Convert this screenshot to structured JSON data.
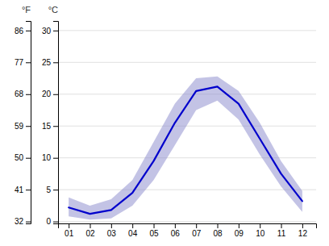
{
  "chart_data": {
    "type": "line",
    "ylabel": "°C",
    "y2label": "°F",
    "x": [
      1,
      2,
      3,
      4,
      5,
      6,
      7,
      8,
      9,
      10,
      11,
      12
    ],
    "xlim": [
      0.5,
      12.65
    ],
    "xticks": [
      {
        "value": 1,
        "label": "01"
      },
      {
        "value": 2,
        "label": "02"
      },
      {
        "value": 3,
        "label": "03"
      },
      {
        "value": 4,
        "label": "04"
      },
      {
        "value": 5,
        "label": "05"
      },
      {
        "value": 6,
        "label": "06"
      },
      {
        "value": 7,
        "label": "07"
      },
      {
        "value": 8,
        "label": "08"
      },
      {
        "value": 9,
        "label": "09"
      },
      {
        "value": 10,
        "label": "10"
      },
      {
        "value": 11,
        "label": "11"
      },
      {
        "value": 12,
        "label": "12"
      }
    ],
    "ylim": [
      -0.3,
      31.5
    ],
    "yticks": [
      0,
      5,
      10,
      15,
      20,
      25,
      30
    ],
    "y2lim": [
      31.46,
      88.7
    ],
    "y2ticks": [
      32,
      41,
      50,
      59,
      68,
      77,
      86
    ],
    "grid": true,
    "series": [
      {
        "type": "band",
        "color": "#8888cc",
        "lower": [
          0.8,
          0.3,
          0.5,
          2.5,
          6.5,
          12.0,
          17.5,
          19.0,
          16.0,
          10.5,
          5.5,
          1.5
        ],
        "upper": [
          3.8,
          2.5,
          3.5,
          6.5,
          12.5,
          18.5,
          22.5,
          22.8,
          20.5,
          15.5,
          9.5,
          4.8
        ]
      },
      {
        "type": "line",
        "color": "#0000cc",
        "values": [
          2.2,
          1.2,
          1.8,
          4.5,
          9.5,
          15.5,
          20.5,
          21.2,
          18.5,
          13.0,
          7.5,
          3.2
        ]
      }
    ]
  }
}
